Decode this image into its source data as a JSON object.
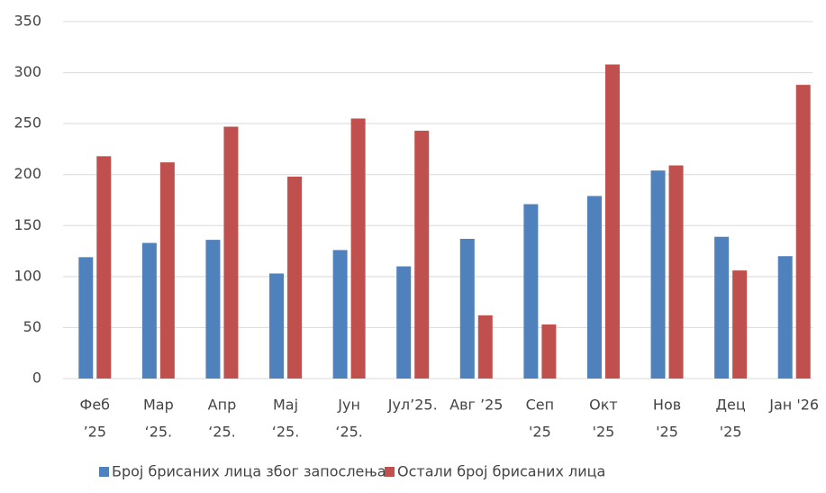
{
  "chart_data": {
    "type": "bar",
    "categories": [
      [
        "Феб",
        "’25"
      ],
      [
        "Мар",
        "‘25."
      ],
      [
        "Апр",
        "‘25."
      ],
      [
        "Мај",
        "‘25."
      ],
      [
        "Јун",
        "‘25."
      ],
      [
        "Јул’25."
      ],
      [
        "Авг ’25"
      ],
      [
        "Сеп",
        "'25"
      ],
      [
        "Окт",
        "'25"
      ],
      [
        "Нов",
        "'25"
      ],
      [
        "Дец",
        "'25"
      ],
      [
        "Јан '26"
      ]
    ],
    "series": [
      {
        "name": "Број брисаних лица због запослења",
        "color": "#4f81bd",
        "values": [
          119,
          133,
          136,
          103,
          126,
          110,
          137,
          171,
          179,
          204,
          139,
          120
        ]
      },
      {
        "name": "Остали број брисаних лица",
        "color": "#c0504d",
        "values": [
          218,
          212,
          247,
          198,
          255,
          243,
          62,
          53,
          308,
          209,
          106,
          288
        ]
      }
    ],
    "ylim": [
      0,
      350
    ],
    "yticks": [
      0,
      50,
      100,
      150,
      200,
      250,
      300,
      350
    ],
    "grid": true,
    "legend": "bottom"
  }
}
